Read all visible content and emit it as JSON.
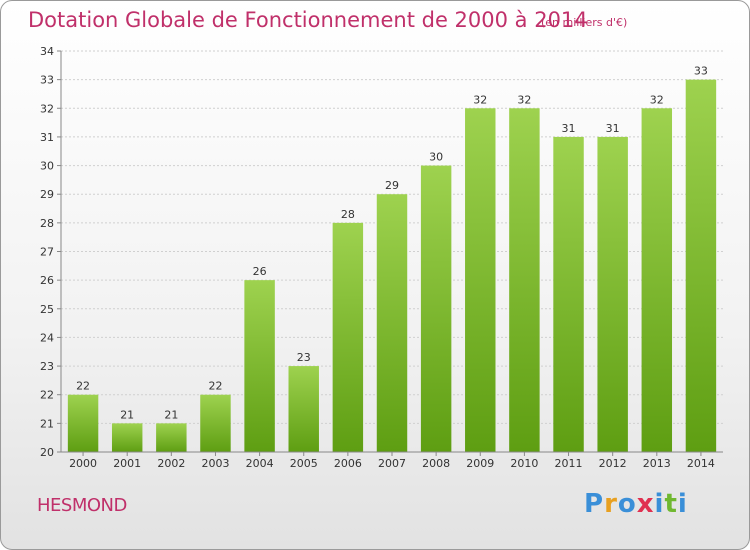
{
  "header": {
    "title": "Dotation Globale de Fonctionnement de 2000 à 2014",
    "subtitle": "(en milliers d'€)"
  },
  "footer": {
    "place_name": "HESMOND",
    "brand": [
      "P",
      "r",
      "o",
      "x",
      "i",
      "t",
      "i"
    ],
    "brand_colors": [
      "#3a8fd8",
      "#e8a020",
      "#3a8fd8",
      "#e03050",
      "#3a8fd8",
      "#70b830",
      "#3a8fd8"
    ]
  },
  "colors": {
    "bar_top": "#9ed24f",
    "bar_bottom": "#5e9e12",
    "grid": "#d0d0d0",
    "title": "#c0306a"
  },
  "chart_data": {
    "type": "bar",
    "title": "Dotation Globale de Fonctionnement de 2000 à 2014",
    "subtitle": "(en milliers d'€)",
    "categories": [
      "2000",
      "2001",
      "2002",
      "2003",
      "2004",
      "2005",
      "2006",
      "2007",
      "2008",
      "2009",
      "2010",
      "2011",
      "2012",
      "2013",
      "2014"
    ],
    "values": [
      22,
      21,
      21,
      22,
      26,
      23,
      28,
      29,
      30,
      32,
      32,
      31,
      31,
      32,
      33
    ],
    "ylim": [
      20,
      34
    ],
    "yticks": [
      20,
      21,
      22,
      23,
      24,
      25,
      26,
      27,
      28,
      29,
      30,
      31,
      32,
      33,
      34
    ],
    "grid": true,
    "xlabel": "",
    "ylabel": ""
  }
}
